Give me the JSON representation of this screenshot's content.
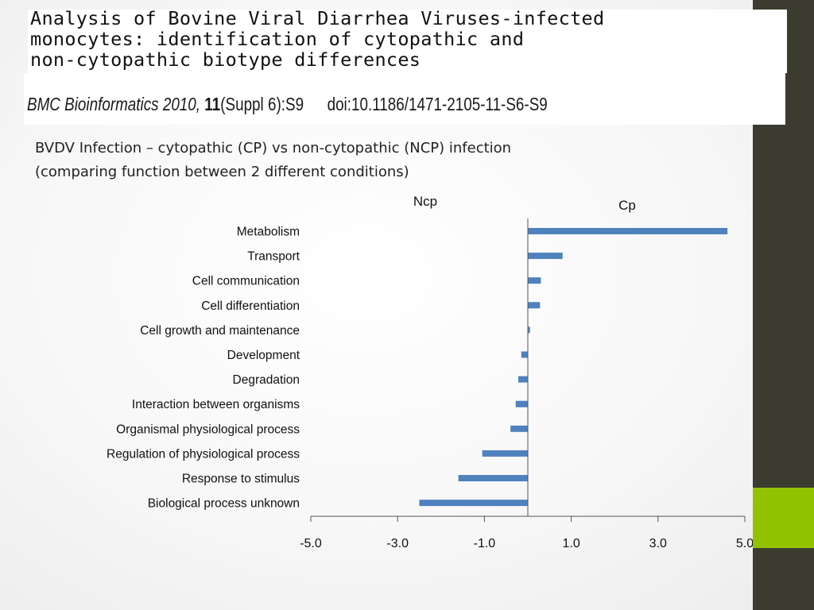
{
  "title": {
    "line1": "Analysis of Bovine Viral Diarrhea Viruses-infected",
    "line2": "monocytes: identification of cytopathic and",
    "line3": "non-cytopathic biotype differences"
  },
  "citation": {
    "journal": "BMC Bioinformatics 2010, ",
    "volume": "11",
    "supplement": "(Suppl 6):S9",
    "doi": "doi:10.1186/1471-2105-11-S6-S9"
  },
  "subtitle": {
    "line1": "BVDV Infection – cytopathic (CP) vs non-cytopathic (NCP) infection",
    "line2": "(comparing function between 2 different conditions)"
  },
  "colors": {
    "bar": "#4f81bd",
    "sidebar": "#3c3b2f",
    "accent": "#92c300"
  },
  "chart_data": {
    "type": "bar",
    "orientation": "horizontal",
    "left_label": "Ncp",
    "right_label": "Cp",
    "categories": [
      "Metabolism",
      "Transport",
      "Cell communication",
      "Cell differentiation",
      "Cell growth and maintenance",
      "Development",
      "Degradation",
      "Interaction between organisms",
      "Organismal physiological process",
      "Regulation of physiological process",
      "Response to stimulus",
      "Biological process unknown"
    ],
    "values": [
      4.6,
      0.8,
      0.3,
      0.28,
      0.05,
      -0.15,
      -0.22,
      -0.28,
      -0.4,
      -1.05,
      -1.6,
      -2.5
    ],
    "xlim": [
      -5.0,
      5.0
    ],
    "xticks": [
      "-5.0",
      "-3.0",
      "-1.0",
      "1.0",
      "3.0",
      "5.0"
    ]
  }
}
